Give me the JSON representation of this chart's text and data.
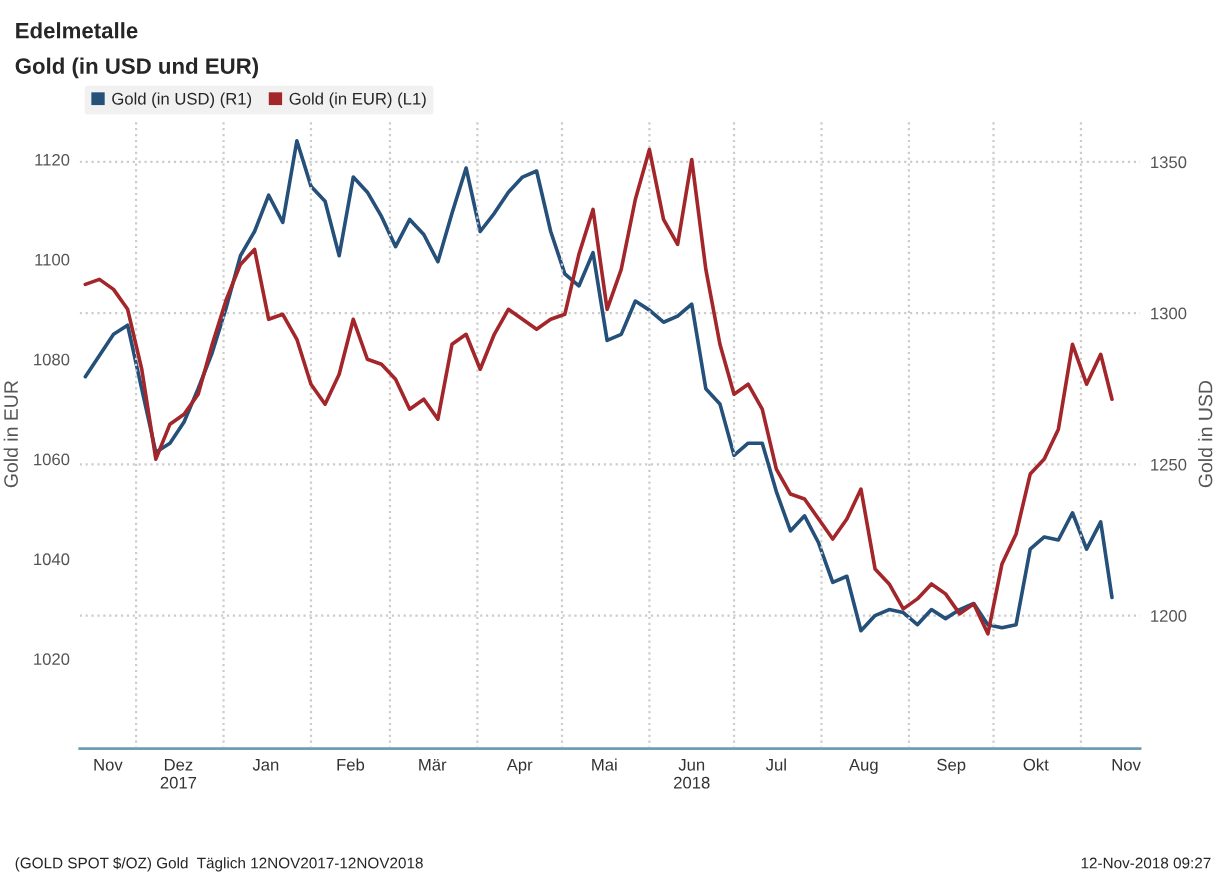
{
  "chart_data": {
    "type": "line",
    "title": "Edelmetalle",
    "subtitle": "Gold (in USD und EUR)",
    "ylabel": "Gold in EUR",
    "y2label": "Gold in USD",
    "x": [
      "2017-11-13",
      "2017-11-18",
      "2017-11-23",
      "2017-11-28",
      "2017-12-03",
      "2017-12-08",
      "2017-12-13",
      "2017-12-18",
      "2017-12-23",
      "2017-12-28",
      "2018-01-02",
      "2018-01-07",
      "2018-01-12",
      "2018-01-17",
      "2018-01-22",
      "2018-01-27",
      "2018-02-01",
      "2018-02-06",
      "2018-02-11",
      "2018-02-16",
      "2018-02-21",
      "2018-02-26",
      "2018-03-03",
      "2018-03-08",
      "2018-03-13",
      "2018-03-18",
      "2018-03-23",
      "2018-03-28",
      "2018-04-02",
      "2018-04-07",
      "2018-04-12",
      "2018-04-17",
      "2018-04-22",
      "2018-04-27",
      "2018-05-02",
      "2018-05-07",
      "2018-05-12",
      "2018-05-17",
      "2018-05-22",
      "2018-05-27",
      "2018-06-01",
      "2018-06-06",
      "2018-06-11",
      "2018-06-16",
      "2018-06-21",
      "2018-06-26",
      "2018-07-01",
      "2018-07-06",
      "2018-07-11",
      "2018-07-16",
      "2018-07-21",
      "2018-07-26",
      "2018-07-31",
      "2018-08-05",
      "2018-08-10",
      "2018-08-15",
      "2018-08-20",
      "2018-08-25",
      "2018-08-30",
      "2018-09-04",
      "2018-09-09",
      "2018-09-14",
      "2018-09-19",
      "2018-09-24",
      "2018-09-29",
      "2018-10-04",
      "2018-10-09",
      "2018-10-14",
      "2018-10-19",
      "2018-10-24",
      "2018-10-29",
      "2018-11-03",
      "2018-11-08",
      "2018-11-12"
    ],
    "series": [
      {
        "name": "Gold (in USD) (R1)",
        "color": "#24507a",
        "axis": "y2",
        "values": [
          1279,
          1286,
          1293,
          1296,
          1275,
          1254,
          1257,
          1264,
          1275,
          1287,
          1302,
          1319,
          1327,
          1339,
          1330,
          1357,
          1342,
          1337,
          1319,
          1345,
          1340,
          1332,
          1322,
          1331,
          1326,
          1317,
          1333,
          1348,
          1327,
          1333,
          1340,
          1345,
          1347,
          1327,
          1313,
          1309,
          1320,
          1291,
          1293,
          1304,
          1301,
          1297,
          1299,
          1303,
          1275,
          1270,
          1253,
          1257,
          1257,
          1241,
          1228,
          1233,
          1224,
          1211,
          1213,
          1195,
          1200,
          1202,
          1201,
          1197,
          1202,
          1199,
          1202,
          1204,
          1197,
          1196,
          1197,
          1222,
          1226,
          1225,
          1234,
          1222,
          1231,
          1206
        ]
      },
      {
        "name": "Gold (in EUR) (L1)",
        "color": "#a3262b",
        "axis": "y",
        "values": [
          1095,
          1096,
          1094,
          1090,
          1078,
          1060,
          1067,
          1069,
          1073,
          1083,
          1092,
          1099,
          1102,
          1088,
          1089,
          1084,
          1075,
          1071,
          1077,
          1088,
          1080,
          1079,
          1076,
          1070,
          1072,
          1068,
          1083,
          1085,
          1078,
          1085,
          1090,
          1088,
          1086,
          1088,
          1089,
          1101,
          1110,
          1090,
          1098,
          1112,
          1122,
          1108,
          1103,
          1120,
          1098,
          1083,
          1073,
          1075,
          1070,
          1058,
          1053,
          1052,
          1048,
          1044,
          1048,
          1054,
          1038,
          1035,
          1030,
          1032,
          1035,
          1033,
          1029,
          1031,
          1025,
          1039,
          1045,
          1057,
          1060,
          1066,
          1083,
          1075,
          1081,
          1072
        ]
      }
    ],
    "xlim": [
      "2017-11-11",
      "2018-11-22"
    ],
    "xticks": [
      {
        "value": "2017-11-21",
        "label": "Nov"
      },
      {
        "value": "2017-12-01",
        "label": null
      },
      {
        "value": "2017-12-16",
        "label": "Dez\n2017"
      },
      {
        "value": "2018-01-01",
        "label": null
      },
      {
        "value": "2018-01-16",
        "label": "Jan"
      },
      {
        "value": "2018-02-01",
        "label": null
      },
      {
        "value": "2018-02-15",
        "label": "Feb"
      },
      {
        "value": "2018-03-01",
        "label": null
      },
      {
        "value": "2018-03-16",
        "label": "Mär"
      },
      {
        "value": "2018-04-01",
        "label": null
      },
      {
        "value": "2018-04-16",
        "label": "Apr"
      },
      {
        "value": "2018-05-01",
        "label": null
      },
      {
        "value": "2018-05-16",
        "label": "Mai"
      },
      {
        "value": "2018-06-01",
        "label": null
      },
      {
        "value": "2018-06-16",
        "label": "Jun\n2018"
      },
      {
        "value": "2018-07-01",
        "label": null
      },
      {
        "value": "2018-07-16",
        "label": "Jul"
      },
      {
        "value": "2018-08-01",
        "label": null
      },
      {
        "value": "2018-08-16",
        "label": "Aug"
      },
      {
        "value": "2018-09-01",
        "label": null
      },
      {
        "value": "2018-09-16",
        "label": "Sep"
      },
      {
        "value": "2018-10-01",
        "label": null
      },
      {
        "value": "2018-10-16",
        "label": "Okt"
      },
      {
        "value": "2018-11-01",
        "label": null
      },
      {
        "value": "2018-11-17",
        "label": "Nov"
      }
    ],
    "ylim": [
      1002,
      1128
    ],
    "yticks": [
      1020,
      1040,
      1060,
      1080,
      1100,
      1120
    ],
    "y2lim": [
      1156,
      1364
    ],
    "y2ticks": [
      1200,
      1250,
      1300,
      1350
    ],
    "grid": true,
    "legend": "top left",
    "marker": "none",
    "line_style": "solid",
    "annotations": [
      "(GOLD SPOT $/OZ) Gold  Täglich 12NOV2017-12NOV2018",
      "12-Nov-2018 09:27"
    ]
  }
}
